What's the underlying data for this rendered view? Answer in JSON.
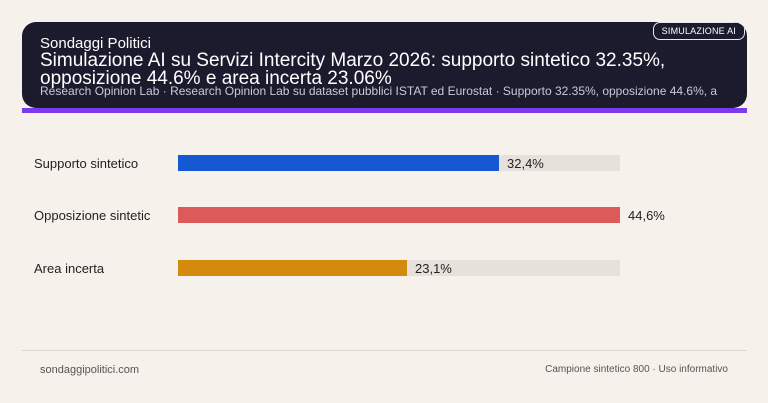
{
  "header": {
    "brand": "Sondaggi Politici",
    "badge": "SIMULAZIONE AI",
    "source_line": "Research Opinion Lab · Research Opinion Lab su dataset pubblici ISTAT ed Eurostat · Supporto 32.35%, opposizione 44.6%, a"
  },
  "footer": {
    "site": "sondaggipolitici.com",
    "note": "Campione sintetico 800 · Uso informativo"
  },
  "colors": {
    "header_bg": "#1c1b2e",
    "accent": "#7c3aed",
    "track": "#e6e1da"
  },
  "chart_data": {
    "type": "bar",
    "orientation": "horizontal",
    "title": "Simulazione AI su Servizi Intercity Marzo 2026: supporto sintetico 32.35%, opposizione 44.6% e area incerta 23.06%",
    "categories": [
      "Supporto sintetico",
      "Opposizione sintetic",
      "Area incerta"
    ],
    "values": [
      32.35,
      44.6,
      23.06
    ],
    "value_labels": [
      "32,4%",
      "44,6%",
      "23,1%"
    ],
    "colors": [
      "#1558d6",
      "#dc5a5a",
      "#d48a0c"
    ],
    "xlim": [
      0,
      44.6
    ],
    "grid": false,
    "legend": "none"
  }
}
